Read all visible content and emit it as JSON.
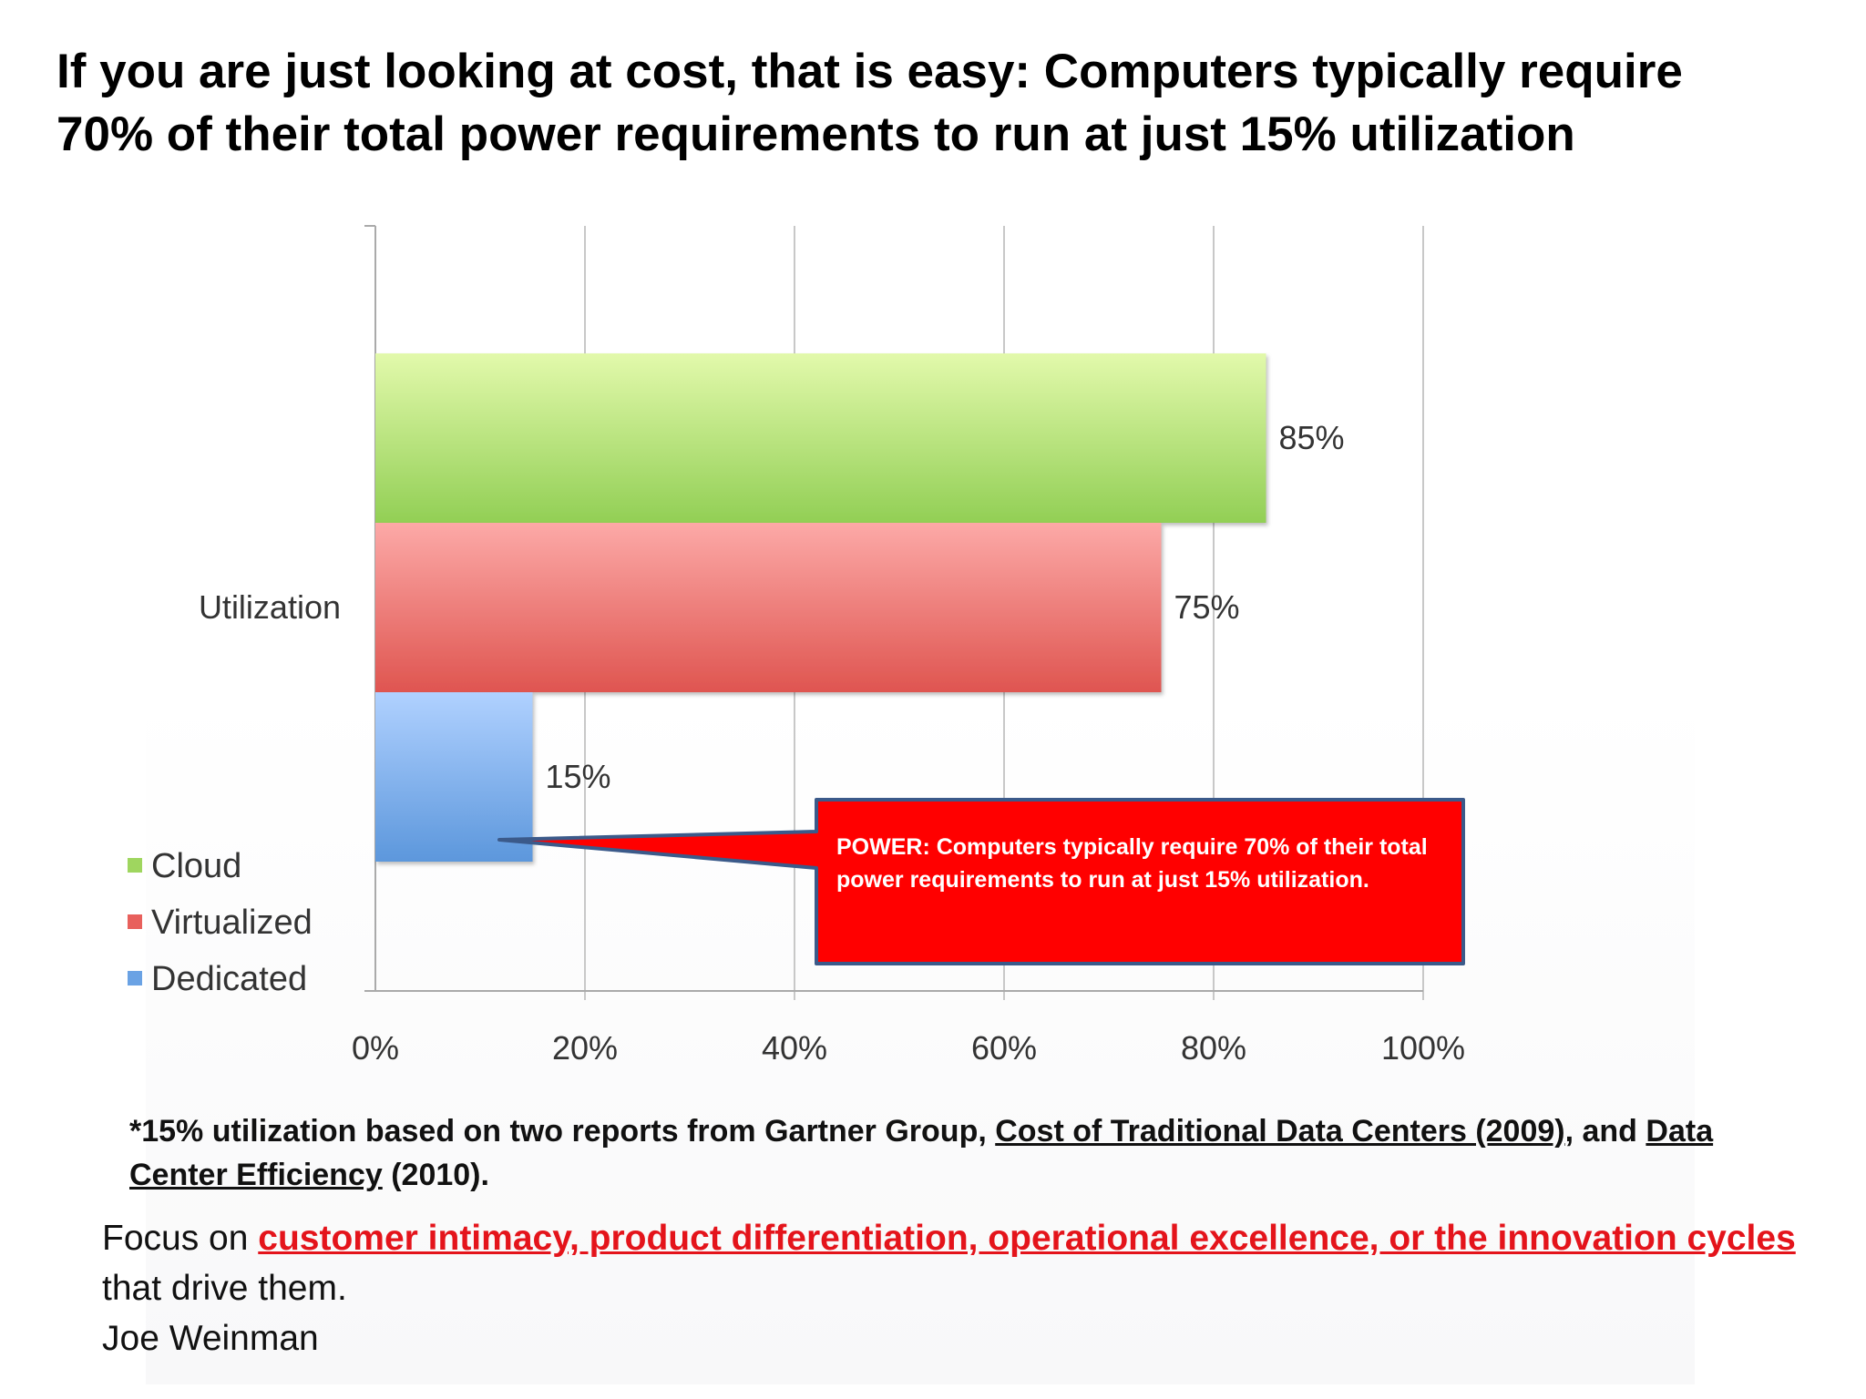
{
  "title": "If you are just looking at cost, that is easy:  Computers typically require 70% of their total power requirements to run at just 15% utilization",
  "colors": {
    "cloud": "#9fd65f",
    "virtualized": "#e8605c",
    "dedicated": "#6aa2e4",
    "callout_fill": "#ff0000",
    "callout_border": "#3b5a8a",
    "emphasis": "#e4141b"
  },
  "chart_data": {
    "type": "bar",
    "orientation": "horizontal",
    "categories": [
      "Utilization"
    ],
    "series": [
      {
        "name": "Cloud",
        "values": [
          85
        ],
        "label": "85%"
      },
      {
        "name": "Virtualized",
        "values": [
          75
        ],
        "label": "75%"
      },
      {
        "name": "Dedicated",
        "values": [
          15
        ],
        "label": "15%"
      }
    ],
    "xlim": [
      0,
      100
    ],
    "x_ticks": [
      "0%",
      "20%",
      "40%",
      "60%",
      "80%",
      "100%"
    ],
    "grid": true,
    "legend_position": "bottom-left",
    "annotation": "POWER:  Computers typically require 70% of their total power requirements to run at just 15% utilization."
  },
  "footnote": {
    "prefix": "*15% utilization based on two reports from Gartner Group, ",
    "ref1": "Cost of Traditional Data Centers (2009)",
    "middle": ", and ",
    "ref2": "Data Center Efficiency",
    "suffix": " (2010)."
  },
  "quote": {
    "lead": "Focus on ",
    "emphasis": "customer intimacy, product differentiation, operational excellence, or the innovation cycles ",
    "tail": "that drive them.",
    "author": "Joe Weinman"
  }
}
